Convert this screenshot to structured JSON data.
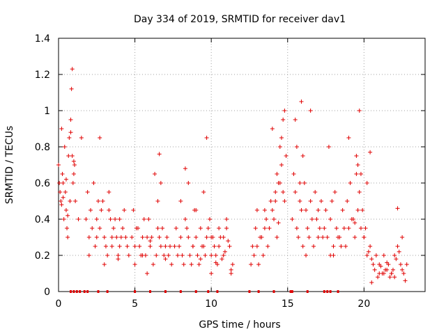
{
  "chart_data": {
    "type": "scatter",
    "title": "Day 334 of 2019, SRMTID for receiver dav1",
    "xlabel": "GPS time / hours",
    "ylabel": "SRMTID / TECUs",
    "xlim": [
      0,
      24
    ],
    "ylim": [
      0,
      1.4
    ],
    "xticks": [
      0,
      5,
      10,
      15,
      20
    ],
    "xtick_labels": [
      "0",
      "5",
      "10",
      "15",
      "20"
    ],
    "yticks": [
      0,
      0.2,
      0.4,
      0.6,
      0.8,
      1.0,
      1.2,
      1.4
    ],
    "ytick_labels": [
      "0",
      "0.2",
      "0.4",
      "0.6",
      "0.8",
      "1",
      "1.2",
      "1.4"
    ],
    "grid": true,
    "marker": "+",
    "color": "#e00000",
    "series": [
      {
        "name": "SRMTID",
        "x": [
          0.0,
          0.1,
          0.2,
          0.3,
          0.4,
          0.5,
          0.6,
          0.7,
          0.8,
          0.9,
          1.0,
          1.1,
          1.3,
          1.5,
          0.05,
          0.15,
          0.25,
          0.35,
          0.45,
          0.55,
          0.65,
          0.75,
          0.85,
          0.95,
          1.05,
          0.2,
          0.5,
          0.8,
          1.0,
          0.3,
          0.6,
          0.9,
          1.8,
          2.0,
          2.2,
          2.4,
          2.6,
          2.8,
          3.0,
          3.2,
          3.4,
          3.6,
          3.8,
          4.0,
          4.2,
          4.4,
          4.6,
          1.9,
          2.1,
          2.3,
          2.5,
          2.7,
          2.9,
          3.1,
          3.3,
          3.5,
          3.7,
          3.9,
          4.1,
          4.3,
          4.5,
          2.0,
          2.5,
          3.0,
          3.5,
          4.0,
          2.7,
          3.3,
          3.9,
          4.8,
          5.0,
          5.2,
          5.4,
          5.6,
          5.8,
          6.0,
          6.2,
          6.4,
          6.6,
          6.8,
          7.0,
          7.2,
          7.4,
          4.9,
          5.1,
          5.3,
          5.5,
          5.7,
          5.9,
          6.1,
          6.3,
          6.5,
          6.7,
          6.9,
          7.1,
          7.3,
          5.0,
          5.5,
          6.0,
          6.5,
          7.0,
          5.8,
          6.6,
          6.7,
          7.6,
          7.8,
          8.0,
          8.2,
          8.4,
          8.6,
          8.8,
          9.0,
          9.2,
          9.4,
          9.6,
          9.8,
          10.0,
          7.7,
          7.9,
          8.1,
          8.3,
          8.5,
          8.7,
          8.9,
          9.1,
          9.3,
          9.5,
          9.7,
          9.9,
          8.0,
          8.5,
          9.0,
          9.5,
          9.7,
          8.3,
          8.8,
          9.3,
          10.0,
          10.2,
          10.4,
          10.6,
          10.8,
          11.0,
          11.2,
          11.4,
          10.1,
          10.3,
          10.5,
          10.7,
          10.9,
          11.1,
          11.3,
          10.0,
          10.5,
          11.0,
          10.3,
          10.8,
          11.3,
          12.6,
          12.8,
          13.0,
          13.2,
          13.4,
          13.6,
          13.8,
          14.0,
          14.2,
          14.4,
          14.6,
          14.8,
          12.7,
          12.9,
          13.1,
          13.3,
          13.5,
          13.7,
          13.9,
          14.1,
          14.3,
          14.5,
          14.7,
          14.9,
          13.0,
          13.5,
          14.0,
          14.5,
          14.8,
          14.6,
          14.7,
          14.2,
          14.4,
          14.3,
          15.3,
          15.5,
          15.7,
          15.9,
          16.1,
          16.3,
          16.5,
          16.7,
          16.9,
          17.1,
          17.3,
          17.5,
          15.4,
          15.6,
          15.8,
          16.0,
          16.2,
          16.4,
          16.6,
          16.8,
          17.0,
          17.2,
          17.4,
          15.5,
          15.8,
          16.0,
          16.5,
          17.0,
          15.9,
          16.2,
          15.6,
          17.6,
          17.8,
          18.0,
          18.2,
          18.4,
          18.6,
          18.8,
          19.0,
          19.2,
          19.4,
          19.6,
          19.8,
          20.0,
          17.7,
          17.9,
          18.1,
          18.3,
          18.5,
          18.7,
          18.9,
          19.1,
          19.3,
          19.5,
          19.7,
          19.9,
          18.0,
          18.5,
          19.0,
          19.5,
          19.7,
          19.6,
          19.8,
          20.2,
          17.8,
          19.4,
          20.0,
          20.2,
          20.4,
          20.6,
          20.8,
          21.0,
          21.2,
          21.4,
          21.6,
          21.8,
          22.0,
          22.2,
          22.4,
          22.6,
          22.8,
          20.1,
          20.3,
          20.5,
          20.7,
          20.9,
          21.1,
          21.3,
          21.5,
          21.7,
          21.9,
          22.1,
          22.3,
          22.5,
          22.7,
          20.5,
          21.0,
          21.5,
          22.0,
          22.5,
          21.3,
          21.8,
          22.2,
          20.4
        ],
        "y": [
          0.7,
          0.55,
          0.9,
          0.6,
          0.8,
          0.45,
          0.3,
          0.85,
          0.95,
          0.75,
          0.65,
          0.5,
          0.4,
          0.85,
          0.6,
          0.5,
          0.65,
          0.4,
          0.55,
          0.35,
          0.75,
          0.5,
          1.12,
          0.6,
          0.7,
          0.48,
          0.62,
          0.88,
          0.72,
          0.52,
          0.42,
          1.23,
          0.4,
          0.3,
          0.35,
          0.25,
          0.5,
          0.45,
          0.3,
          0.2,
          0.4,
          0.35,
          0.3,
          0.25,
          0.35,
          0.3,
          0.2,
          0.55,
          0.45,
          0.6,
          0.4,
          0.35,
          0.5,
          0.25,
          0.45,
          0.3,
          0.4,
          0.2,
          0.3,
          0.45,
          0.25,
          0.2,
          0.3,
          0.15,
          0.25,
          0.4,
          0.85,
          0.55,
          0.18,
          0.3,
          0.25,
          0.35,
          0.2,
          0.4,
          0.3,
          0.25,
          0.15,
          0.2,
          0.3,
          0.35,
          0.25,
          0.2,
          0.15,
          0.45,
          0.35,
          0.25,
          0.3,
          0.2,
          0.4,
          0.3,
          0.65,
          0.35,
          0.25,
          0.2,
          0.3,
          0.25,
          0.15,
          0.2,
          0.28,
          0.5,
          0.18,
          0.1,
          0.76,
          0.6,
          0.25,
          0.2,
          0.3,
          0.15,
          0.35,
          0.2,
          0.25,
          0.3,
          0.15,
          0.25,
          0.2,
          0.35,
          0.3,
          0.35,
          0.25,
          0.2,
          0.4,
          0.3,
          0.15,
          0.45,
          0.2,
          0.35,
          0.25,
          0.3,
          0.4,
          0.5,
          0.6,
          0.45,
          0.55,
          0.85,
          0.68,
          0.25,
          0.18,
          0.2,
          0.25,
          0.15,
          0.3,
          0.2,
          0.35,
          0.25,
          0.15,
          0.3,
          0.2,
          0.25,
          0.18,
          0.22,
          0.28,
          0.12,
          0.1,
          0.35,
          0.4,
          0.16,
          0.3,
          0.1,
          0.15,
          0.2,
          0.25,
          0.3,
          0.2,
          0.4,
          0.35,
          0.45,
          0.55,
          0.6,
          0.7,
          0.5,
          0.25,
          0.35,
          0.15,
          0.3,
          0.45,
          0.25,
          0.5,
          0.4,
          0.65,
          0.8,
          0.55,
          0.75,
          0.45,
          0.35,
          0.9,
          0.6,
          1.0,
          0.85,
          0.95,
          0.5,
          0.38,
          0.3,
          0.4,
          0.55,
          0.3,
          0.45,
          0.6,
          0.35,
          0.5,
          0.25,
          0.4,
          0.35,
          0.3,
          0.45,
          0.65,
          0.35,
          0.5,
          0.25,
          0.45,
          0.3,
          0.4,
          0.55,
          0.3,
          0.5,
          0.35,
          0.95,
          0.6,
          0.75,
          1.0,
          0.45,
          1.05,
          0.2,
          0.8,
          0.3,
          0.4,
          0.25,
          0.35,
          0.3,
          0.45,
          0.25,
          0.35,
          0.4,
          0.3,
          0.45,
          0.35,
          0.3,
          0.8,
          0.5,
          0.55,
          0.3,
          0.25,
          0.35,
          0.5,
          0.6,
          0.4,
          0.65,
          0.55,
          0.45,
          0.2,
          0.25,
          0.85,
          0.75,
          1.0,
          0.7,
          0.65,
          0.6,
          0.2,
          0.38,
          0.3,
          0.2,
          0.25,
          0.15,
          0.2,
          0.15,
          0.1,
          0.12,
          0.15,
          0.1,
          0.2,
          0.25,
          0.15,
          0.1,
          0.15,
          0.35,
          0.22,
          0.18,
          0.12,
          0.08,
          0.14,
          0.1,
          0.16,
          0.08,
          0.12,
          0.18,
          0.22,
          0.12,
          0.06,
          0.05,
          0.1,
          0.12,
          0.08,
          0.3,
          0.2,
          0.1,
          0.46,
          0.77
        ]
      }
    ],
    "zero_line_markers_x": [
      0.8,
      1.0,
      1.2,
      1.4,
      1.7,
      1.9,
      2.6,
      3.2,
      5.0,
      6.0,
      7.0,
      8.0,
      9.0,
      9.8,
      10.4,
      12.5,
      13.1,
      14.1,
      15.2,
      15.3,
      16.3,
      17.4,
      17.6,
      17.8,
      18.3
    ]
  }
}
